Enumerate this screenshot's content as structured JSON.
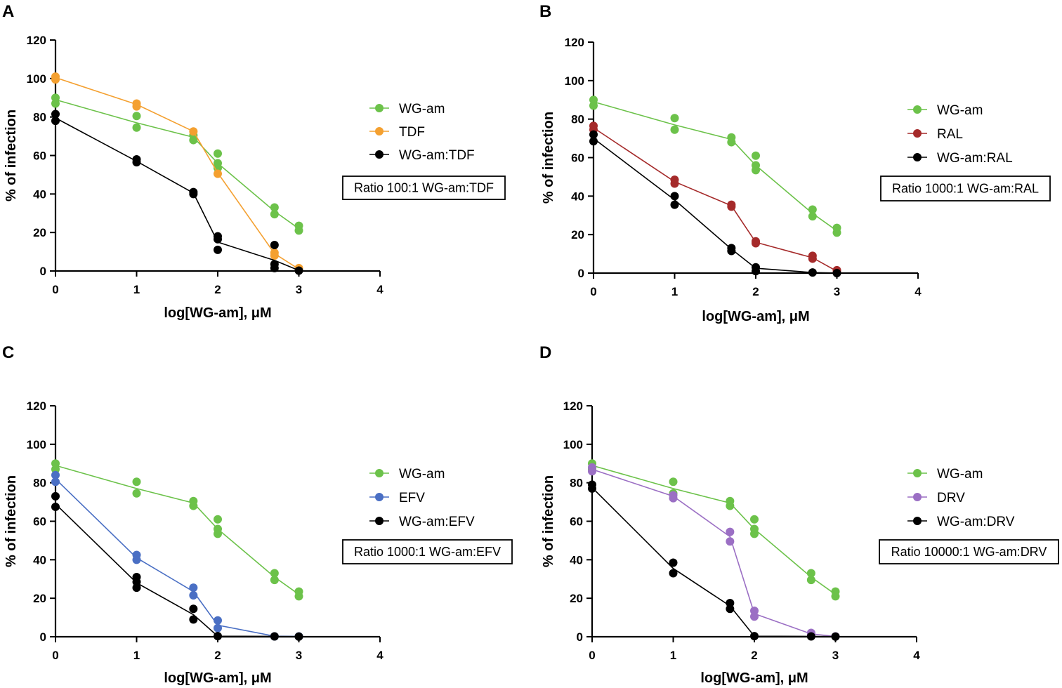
{
  "chart_data": [
    {
      "panel": "A",
      "type": "scatter",
      "xlabel": "log[WG-am], μM",
      "ylabel": "% of infection",
      "xlim": [
        0,
        4
      ],
      "ylim": [
        0,
        120
      ],
      "xticks": [
        0,
        1,
        2,
        3,
        4
      ],
      "yticks": [
        0,
        20,
        40,
        60,
        80,
        100,
        120
      ],
      "annotation": "Ratio 100:1 WG-am:TDF",
      "series": [
        {
          "name": "WG-am",
          "color": "#6cc24a",
          "mean": [
            [
              0,
              89
            ],
            [
              1,
              77
            ],
            [
              1.7,
              69.5
            ],
            [
              2,
              56
            ],
            [
              2.7,
              31
            ],
            [
              3,
              22
            ]
          ],
          "points": [
            [
              0,
              87
            ],
            [
              0,
              90
            ],
            [
              1,
              74.5
            ],
            [
              1,
              80.5
            ],
            [
              1.7,
              68
            ],
            [
              1.7,
              70.5
            ],
            [
              2,
              53.5
            ],
            [
              2,
              56
            ],
            [
              2,
              61
            ],
            [
              2.7,
              29.5
            ],
            [
              2.7,
              33
            ],
            [
              3,
              21
            ],
            [
              3,
              23.5
            ]
          ]
        },
        {
          "name": "TDF",
          "color": "#f4a030",
          "mean": [
            [
              0,
              100.5
            ],
            [
              1,
              86.5
            ],
            [
              1.7,
              72.5
            ],
            [
              2,
              51
            ],
            [
              2.7,
              9
            ],
            [
              3,
              1
            ]
          ],
          "points": [
            [
              0,
              99.5
            ],
            [
              0,
              101
            ],
            [
              1,
              85.5
            ],
            [
              1,
              87
            ],
            [
              1.7,
              72.5
            ],
            [
              2,
              50.5
            ],
            [
              2.7,
              8
            ],
            [
              2.7,
              9.5
            ],
            [
              3,
              0.5
            ],
            [
              3,
              1.5
            ]
          ]
        },
        {
          "name": "WG-am:TDF",
          "color": "#000000",
          "mean": [
            [
              0,
              79.5
            ],
            [
              1,
              57
            ],
            [
              1.7,
              40.5
            ],
            [
              2,
              15
            ],
            [
              2.7,
              5.5
            ],
            [
              3,
              0.3
            ]
          ],
          "points": [
            [
              0,
              78
            ],
            [
              0,
              81.5
            ],
            [
              1,
              56.5
            ],
            [
              1,
              58
            ],
            [
              1.7,
              40
            ],
            [
              1.7,
              41
            ],
            [
              2,
              11
            ],
            [
              2,
              16.5
            ],
            [
              2,
              18
            ],
            [
              2.7,
              1.5
            ],
            [
              2.7,
              3.5
            ],
            [
              2.7,
              13.5
            ],
            [
              3,
              0.2
            ]
          ]
        }
      ]
    },
    {
      "panel": "B",
      "type": "scatter",
      "xlabel": "log[WG-am], μM",
      "ylabel": "% of infection",
      "xlim": [
        0,
        4
      ],
      "ylim": [
        0,
        120
      ],
      "xticks": [
        0,
        1,
        2,
        3,
        4
      ],
      "yticks": [
        0,
        20,
        40,
        60,
        80,
        100,
        120
      ],
      "annotation": "Ratio 1000:1 WG-am:RAL",
      "series": [
        {
          "name": "WG-am",
          "color": "#6cc24a",
          "mean": [
            [
              0,
              89
            ],
            [
              1,
              77
            ],
            [
              1.7,
              69.5
            ],
            [
              2,
              56
            ],
            [
              2.7,
              31
            ],
            [
              3,
              22
            ]
          ],
          "points": [
            [
              0,
              87
            ],
            [
              0,
              90
            ],
            [
              1,
              74.5
            ],
            [
              1,
              80.5
            ],
            [
              1.7,
              68
            ],
            [
              1.7,
              70.5
            ],
            [
              2,
              53.5
            ],
            [
              2,
              56
            ],
            [
              2,
              61
            ],
            [
              2.7,
              29.5
            ],
            [
              2.7,
              33
            ],
            [
              3,
              21
            ],
            [
              3,
              23.5
            ]
          ]
        },
        {
          "name": "RAL",
          "color": "#a52a2a",
          "mean": [
            [
              0,
              75.5
            ],
            [
              1,
              47.5
            ],
            [
              1.7,
              35
            ],
            [
              2,
              16
            ],
            [
              2.7,
              8
            ],
            [
              3,
              1
            ]
          ],
          "points": [
            [
              0,
              74.5
            ],
            [
              0,
              76.5
            ],
            [
              1,
              46.5
            ],
            [
              1,
              48.5
            ],
            [
              1.7,
              34.5
            ],
            [
              1.7,
              35.5
            ],
            [
              2,
              15.5
            ],
            [
              2,
              16.5
            ],
            [
              2.7,
              7.5
            ],
            [
              2.7,
              9
            ],
            [
              3,
              0.5
            ],
            [
              3,
              1.5
            ]
          ]
        },
        {
          "name": "WG-am:RAL",
          "color": "#000000",
          "mean": [
            [
              0,
              70
            ],
            [
              1,
              38
            ],
            [
              1.7,
              12.5
            ],
            [
              2,
              2.5
            ],
            [
              2.7,
              0.3
            ],
            [
              3,
              0
            ]
          ],
          "points": [
            [
              0,
              68.5
            ],
            [
              0,
              72
            ],
            [
              1,
              35.5
            ],
            [
              1,
              40
            ],
            [
              1.7,
              11.5
            ],
            [
              1.7,
              13
            ],
            [
              2,
              1
            ],
            [
              2,
              3
            ],
            [
              2.7,
              0.3
            ],
            [
              3,
              0
            ]
          ]
        }
      ]
    },
    {
      "panel": "C",
      "type": "scatter",
      "xlabel": "log[WG-am], μM",
      "ylabel": "% of infection",
      "xlim": [
        0,
        4
      ],
      "ylim": [
        0,
        120
      ],
      "xticks": [
        0,
        1,
        2,
        3,
        4
      ],
      "yticks": [
        0,
        20,
        40,
        60,
        80,
        100,
        120
      ],
      "annotation": "Ratio 1000:1 WG-am:EFV",
      "series": [
        {
          "name": "WG-am",
          "color": "#6cc24a",
          "mean": [
            [
              0,
              89
            ],
            [
              1,
              77
            ],
            [
              1.7,
              69.5
            ],
            [
              2,
              56
            ],
            [
              2.7,
              31
            ],
            [
              3,
              22
            ]
          ],
          "points": [
            [
              0,
              87
            ],
            [
              0,
              90
            ],
            [
              1,
              74.5
            ],
            [
              1,
              80.5
            ],
            [
              1.7,
              68
            ],
            [
              1.7,
              70.5
            ],
            [
              2,
              53.5
            ],
            [
              2,
              56
            ],
            [
              2,
              61
            ],
            [
              2.7,
              29.5
            ],
            [
              2.7,
              33
            ],
            [
              3,
              21
            ],
            [
              3,
              23.5
            ]
          ]
        },
        {
          "name": "EFV",
          "color": "#4a6fc4",
          "mean": [
            [
              0,
              82
            ],
            [
              1,
              41
            ],
            [
              1.7,
              23.5
            ],
            [
              2,
              6
            ],
            [
              2.7,
              0.3
            ],
            [
              3,
              0.2
            ]
          ],
          "points": [
            [
              0,
              80.5
            ],
            [
              0,
              84
            ],
            [
              1,
              40
            ],
            [
              1,
              42.5
            ],
            [
              1.7,
              21.5
            ],
            [
              1.7,
              25.5
            ],
            [
              2,
              4.5
            ],
            [
              2,
              8.5
            ],
            [
              2.7,
              0.2
            ],
            [
              3,
              0.2
            ]
          ]
        },
        {
          "name": "WG-am:EFV",
          "color": "#000000",
          "mean": [
            [
              0,
              69
            ],
            [
              1,
              28
            ],
            [
              1.7,
              11.5
            ],
            [
              2,
              0.3
            ],
            [
              2.7,
              0.2
            ],
            [
              3,
              0.1
            ]
          ],
          "points": [
            [
              0,
              67.5
            ],
            [
              0,
              73
            ],
            [
              1,
              25.5
            ],
            [
              1,
              28.5
            ],
            [
              1,
              31
            ],
            [
              1.7,
              9
            ],
            [
              1.7,
              14.5
            ],
            [
              2,
              0.3
            ],
            [
              2.7,
              0.2
            ],
            [
              3,
              0.1
            ]
          ]
        }
      ]
    },
    {
      "panel": "D",
      "type": "scatter",
      "xlabel": "log[WG-am], μM",
      "ylabel": "% of infection",
      "xlim": [
        0,
        4
      ],
      "ylim": [
        0,
        120
      ],
      "xticks": [
        0,
        1,
        2,
        3,
        4
      ],
      "yticks": [
        0,
        20,
        40,
        60,
        80,
        100,
        120
      ],
      "annotation": "Ratio 10000:1 WG-am:DRV",
      "series": [
        {
          "name": "WG-am",
          "color": "#6cc24a",
          "mean": [
            [
              0,
              89
            ],
            [
              1,
              77
            ],
            [
              1.7,
              69.5
            ],
            [
              2,
              56
            ],
            [
              2.7,
              31
            ],
            [
              3,
              22
            ]
          ],
          "points": [
            [
              0,
              87
            ],
            [
              0,
              90
            ],
            [
              1,
              74.5
            ],
            [
              1,
              80.5
            ],
            [
              1.7,
              68
            ],
            [
              1.7,
              70.5
            ],
            [
              2,
              53.5
            ],
            [
              2,
              56
            ],
            [
              2,
              61
            ],
            [
              2.7,
              29.5
            ],
            [
              2.7,
              33
            ],
            [
              3,
              21
            ],
            [
              3,
              23.5
            ]
          ]
        },
        {
          "name": "DRV",
          "color": "#9b6fc4",
          "mean": [
            [
              0,
              87
            ],
            [
              1,
              73
            ],
            [
              1.7,
              52
            ],
            [
              2,
              12
            ],
            [
              2.7,
              1.5
            ],
            [
              3,
              0.2
            ]
          ],
          "points": [
            [
              0,
              86
            ],
            [
              0,
              88
            ],
            [
              1,
              72
            ],
            [
              1,
              73.5
            ],
            [
              1.7,
              49.5
            ],
            [
              1.7,
              54.5
            ],
            [
              2,
              10.5
            ],
            [
              2,
              13.5
            ],
            [
              2.7,
              1
            ],
            [
              2.7,
              2
            ],
            [
              3,
              0.2
            ]
          ]
        },
        {
          "name": "WG-am:DRV",
          "color": "#000000",
          "mean": [
            [
              0,
              77.5
            ],
            [
              1,
              35.5
            ],
            [
              1.7,
              16
            ],
            [
              2,
              0.3
            ],
            [
              2.7,
              0.2
            ],
            [
              3,
              0.1
            ]
          ],
          "points": [
            [
              0,
              77
            ],
            [
              0,
              79
            ],
            [
              1,
              33
            ],
            [
              1,
              38.5
            ],
            [
              1.7,
              14.5
            ],
            [
              1.7,
              17.5
            ],
            [
              2,
              0.3
            ],
            [
              2.7,
              0.2
            ],
            [
              3,
              0.1
            ]
          ]
        }
      ]
    }
  ]
}
